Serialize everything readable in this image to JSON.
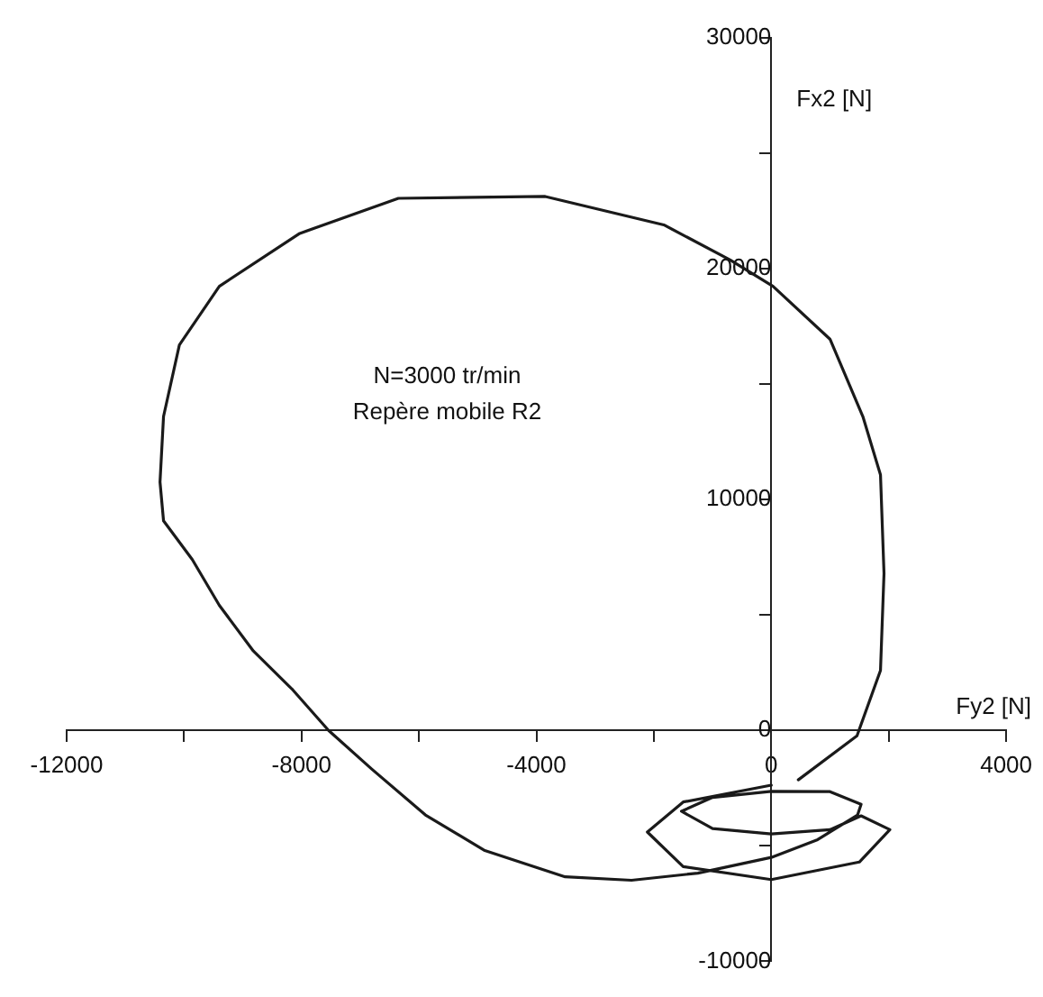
{
  "chart_data": {
    "type": "line",
    "xlabel": "Fy2 [N]",
    "ylabel": "Fx2 [N]",
    "annotations": [
      "N=3000 tr/min",
      "Repère mobile R2"
    ],
    "xlim": [
      -12000,
      4000
    ],
    "ylim": [
      -10000,
      30000
    ],
    "xticks": [
      -12000,
      {
        "value": -10000,
        "label": null
      },
      -8000,
      {
        "value": -6000,
        "label": null
      },
      -4000,
      {
        "value": -2000,
        "label": null
      },
      0,
      {
        "value": 2000,
        "label": null
      },
      4000
    ],
    "yticks": [
      -10000,
      {
        "value": -5000,
        "label": null
      },
      0,
      {
        "value": 5000,
        "label": null
      },
      10000,
      {
        "value": 15000,
        "label": null
      },
      20000,
      {
        "value": 25000,
        "label": null
      },
      30000
    ],
    "grid": false,
    "legend": false,
    "marker": "none",
    "line_style": "solid",
    "series": [
      {
        "color": "#1a1a1a",
        "x": [
          460,
          1460,
          1860,
          1920,
          1860,
          1560,
          1000,
          30,
          -700,
          -1830,
          -3850,
          -6350,
          -8030,
          -9400,
          -10080,
          -10350,
          -10410,
          -10350,
          -9860,
          -9400,
          -8820,
          -8150,
          -7540,
          -6800,
          -5890,
          -4890,
          -3510,
          -2380,
          -1250,
          0,
          790,
          1470,
          1530,
          1000,
          0,
          -1000,
          -1530,
          -1000,
          0,
          1000,
          1530,
          2020,
          1500,
          0,
          -1500,
          -2110,
          -1500,
          0
        ],
        "values": [
          -2140,
          -230,
          2600,
          6800,
          11070,
          13600,
          16950,
          19240,
          20380,
          21900,
          23130,
          23050,
          21530,
          19240,
          16700,
          13600,
          10760,
          9080,
          7400,
          5420,
          3440,
          1760,
          0,
          -1680,
          -3660,
          -5190,
          -6340,
          -6490,
          -6180,
          -5500,
          -4730,
          -3660,
          -3200,
          -2650,
          -2640,
          -2900,
          -3500,
          -4250,
          -4480,
          -4300,
          -3700,
          -4300,
          -5700,
          -6460,
          -5900,
          -4400,
          -3100,
          -2370
        ]
      }
    ]
  }
}
